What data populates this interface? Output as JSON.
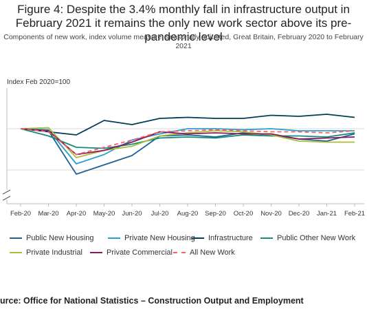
{
  "title": "Figure 4: Despite the 3.4% monthly fall in infrastructure output in February 2021 it remains the only new work sector above its pre-pandemic level",
  "subtitle": "Components of new work, index volume measure, seasonally adjusted, Great Britain, February 2020 to February 2021",
  "source": "urce: Office for National Statistics – Construction Output and Employment",
  "chart_data": {
    "type": "line",
    "ylabel": "Index Feb 2020=100",
    "categories": [
      "Feb-20",
      "Mar-20",
      "Apr-20",
      "May-20",
      "Jun-20",
      "Jul-20",
      "Aug-20",
      "Sep-20",
      "Oct-20",
      "Nov-20",
      "Dec-20",
      "Jan-21",
      "Feb-21"
    ],
    "ylim": [
      60,
      115
    ],
    "y_axis_break": true,
    "grid": "horizontal",
    "legend_position": "bottom",
    "series": [
      {
        "name": "Public New Housing",
        "color": "#206095",
        "dashed": false,
        "values": [
          100,
          98,
          56,
          65,
          74,
          93,
          94,
          92,
          96,
          94,
          90,
          88,
          95
        ]
      },
      {
        "name": "Private New Housing",
        "color": "#27a0cc",
        "dashed": false,
        "values": [
          100,
          99,
          66,
          75,
          89,
          95,
          100,
          100,
          99,
          100,
          98,
          98,
          98
        ]
      },
      {
        "name": "Infrastructure",
        "color": "#003c57",
        "dashed": false,
        "values": [
          100,
          97,
          94,
          108,
          104,
          110,
          111,
          110,
          110,
          113,
          112,
          114,
          111
        ]
      },
      {
        "name": "Public Other New Work",
        "color": "#118c7b",
        "dashed": false,
        "values": [
          100,
          93,
          82,
          81,
          85,
          91,
          92,
          91,
          94,
          93,
          93,
          92,
          96
        ]
      },
      {
        "name": "Private Industrial",
        "color": "#a8bd3a",
        "dashed": false,
        "values": [
          100,
          101,
          72,
          79,
          83,
          93,
          96,
          98,
          97,
          94,
          88,
          87,
          87
        ]
      },
      {
        "name": "Private Commercial",
        "color": "#871a5b",
        "dashed": false,
        "values": [
          100,
          98,
          75,
          79,
          87,
          97,
          95,
          96,
          95,
          95,
          90,
          91,
          92
        ]
      },
      {
        "name": "All New Work",
        "color": "#f66068",
        "dashed": true,
        "values": [
          100,
          97,
          75,
          82,
          89,
          97,
          98,
          99,
          98,
          97,
          97,
          96,
          98
        ]
      }
    ]
  }
}
